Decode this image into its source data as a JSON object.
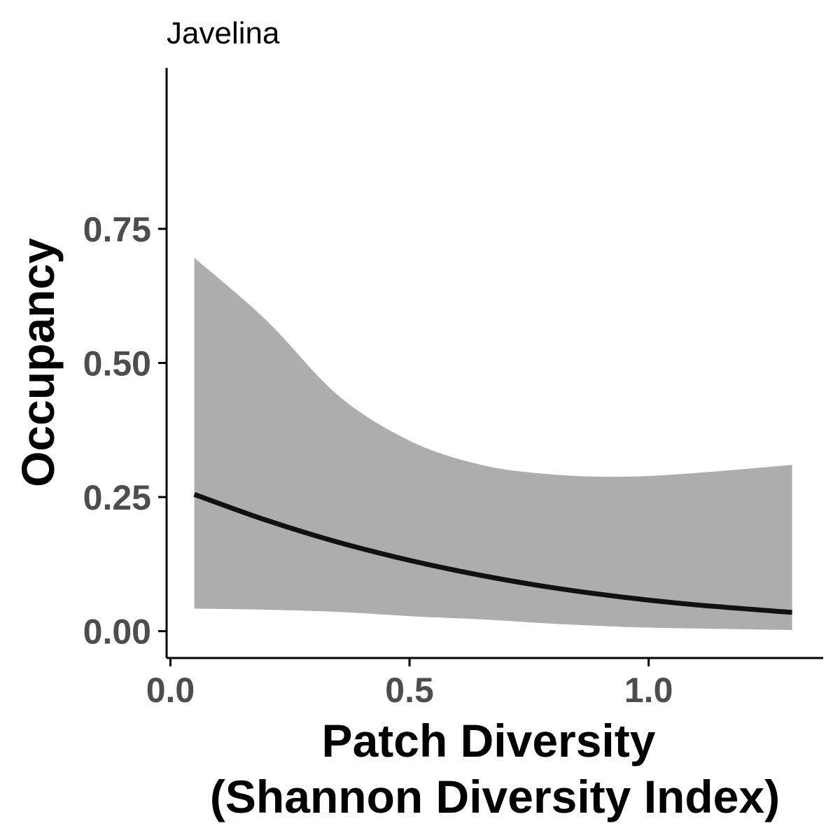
{
  "chart_data": {
    "type": "line",
    "title": "Javelina",
    "xlabel_lines": [
      "Patch Diversity",
      "(Shannon Diversity Index)"
    ],
    "ylabel": "Occupancy",
    "x_ticks": [
      {
        "value": 0,
        "label": "0.0"
      },
      {
        "value": 0.5,
        "label": "0.5"
      },
      {
        "value": 1.0,
        "label": "1.0"
      }
    ],
    "y_ticks": [
      {
        "value": 0,
        "label": "0.00"
      },
      {
        "value": 0.25,
        "label": "0.25"
      },
      {
        "value": 0.5,
        "label": "0.50"
      },
      {
        "value": 0.75,
        "label": "0.75"
      }
    ],
    "xlim": [
      -0.008,
      1.365
    ],
    "ylim": [
      -0.05,
      1.05
    ],
    "grid": false,
    "legend": "none",
    "series": [
      {
        "x": [
          0.05,
          0.2,
          0.35,
          0.5,
          0.65,
          0.8,
          0.95,
          1.1,
          1.3
        ],
        "y": [
          0.255,
          0.207,
          0.166,
          0.132,
          0.104,
          0.081,
          0.063,
          0.049,
          0.035
        ],
        "lower": [
          0.042,
          0.04,
          0.036,
          0.028,
          0.022,
          0.014,
          0.008,
          0.005,
          0.002
        ],
        "upper": [
          0.696,
          0.58,
          0.44,
          0.355,
          0.31,
          0.292,
          0.288,
          0.295,
          0.31
        ]
      }
    ],
    "colors": {
      "line": "#111111",
      "ribbon": "#adadad",
      "axis": "#000000",
      "tick_label": "#4d4d4d"
    }
  }
}
